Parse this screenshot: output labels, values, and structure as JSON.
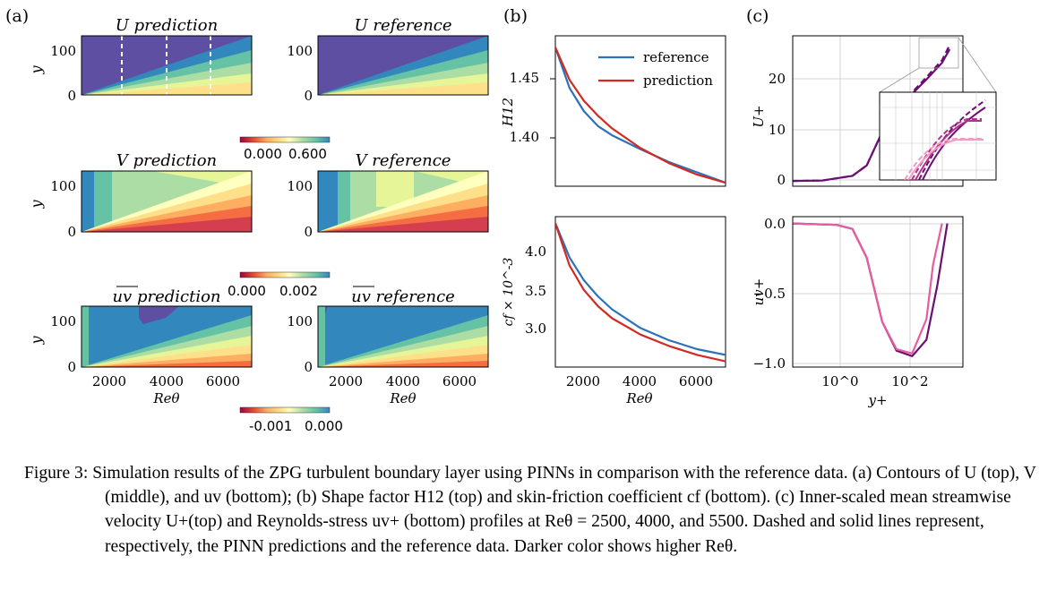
{
  "panel_labels": {
    "a": "(a)",
    "b": "(b)",
    "c": "(c)"
  },
  "panel_a": {
    "titles": {
      "u_pred": "U prediction",
      "u_ref": "U reference",
      "v_pred": "V prediction",
      "v_ref": "V reference",
      "uv_pred": "uv prediction",
      "uv_ref": "uv reference"
    },
    "ylabel": "y",
    "xlabel": "Reθ",
    "y_ticks": [
      "100",
      "0"
    ],
    "x_ticks": [
      "2000",
      "4000",
      "6000"
    ],
    "colorbars": [
      {
        "ticks": [
          "0.000",
          "0.600"
        ]
      },
      {
        "ticks": [
          "0.000",
          "0.002"
        ]
      },
      {
        "ticks": [
          "-0.001",
          "0.000"
        ]
      }
    ]
  },
  "chart_data": [
    {
      "type": "line",
      "panel": "(b) top",
      "ylabel": "H12",
      "xlim": [
        1000,
        7000
      ],
      "ylim": [
        1.36,
        1.49
      ],
      "y_ticks": [
        "1.45",
        "1.40"
      ],
      "legend_position": "top-right",
      "series": [
        {
          "name": "reference",
          "color": "#2b72b8",
          "x": [
            1000,
            1500,
            2000,
            2500,
            3000,
            4000,
            5000,
            6000,
            7000
          ],
          "y": [
            1.48,
            1.445,
            1.425,
            1.412,
            1.404,
            1.392,
            1.381,
            1.372,
            1.363
          ]
        },
        {
          "name": "prediction",
          "color": "#d02a23",
          "x": [
            1000,
            1500,
            2000,
            2500,
            3000,
            4000,
            5000,
            6000,
            7000
          ],
          "y": [
            1.48,
            1.452,
            1.434,
            1.421,
            1.41,
            1.393,
            1.38,
            1.37,
            1.363
          ]
        }
      ]
    },
    {
      "type": "line",
      "panel": "(b) bottom",
      "ylabel": "cf × 10^-3",
      "xlabel": "Reθ",
      "xlim": [
        1000,
        7000
      ],
      "ylim": [
        2.55,
        4.4
      ],
      "x_ticks": [
        "2000",
        "4000",
        "6000"
      ],
      "y_ticks": [
        "4.0",
        "3.5",
        "3.0"
      ],
      "series": [
        {
          "name": "reference",
          "color": "#2b72b8",
          "x": [
            1000,
            1500,
            2000,
            2500,
            3000,
            4000,
            5000,
            6000,
            7000
          ],
          "y": [
            4.32,
            3.9,
            3.62,
            3.42,
            3.26,
            3.03,
            2.88,
            2.77,
            2.7
          ]
        },
        {
          "name": "prediction",
          "color": "#d02a23",
          "x": [
            1000,
            1500,
            2000,
            2500,
            3000,
            4000,
            5000,
            6000,
            7000
          ],
          "y": [
            4.32,
            3.8,
            3.5,
            3.3,
            3.15,
            2.95,
            2.81,
            2.7,
            2.62
          ]
        }
      ]
    },
    {
      "type": "line",
      "panel": "(c) top",
      "ylabel": "U+",
      "x_scale": "log",
      "ylim": [
        -1,
        28
      ],
      "y_ticks": [
        "20",
        "10",
        "0"
      ],
      "grid": true,
      "series": [
        {
          "line": "solid",
          "color": "#6b0f73",
          "x": [
            0.01,
            0.1,
            1,
            3,
            10,
            30,
            100,
            300,
            1000,
            1800
          ],
          "y": [
            0.01,
            0.1,
            1,
            3,
            9.5,
            13.8,
            16.8,
            19.6,
            22.8,
            25.4
          ]
        },
        {
          "line": "dashed",
          "color": "#6b0f73",
          "x": [
            0.01,
            0.1,
            1,
            3,
            10,
            30,
            100,
            300,
            1000,
            1800
          ],
          "y": [
            0.01,
            0.1,
            1,
            3,
            9.5,
            14,
            17.1,
            20,
            23.3,
            26.2
          ]
        }
      ]
    },
    {
      "type": "line",
      "panel": "(c) bottom",
      "ylabel": "uv+",
      "xlabel": "y+",
      "x_scale": "log",
      "xlim": [
        0.01,
        5000
      ],
      "ylim": [
        -1.05,
        0.05
      ],
      "x_ticks": [
        "10^0",
        "10^2"
      ],
      "y_ticks": [
        "0.0",
        "−0.5",
        "−1.0"
      ],
      "grid": true,
      "series": [
        {
          "line": "solid",
          "color": "#6b0f73",
          "x": [
            0.01,
            0.3,
            1,
            3,
            10,
            30,
            100,
            300,
            700,
            1500
          ],
          "y": [
            0,
            -0.01,
            -0.04,
            -0.25,
            -0.72,
            -0.93,
            -0.97,
            -0.85,
            -0.45,
            0
          ]
        },
        {
          "line": "solid",
          "color": "#e55d9f",
          "x": [
            0.01,
            0.3,
            1,
            3,
            10,
            30,
            100,
            300,
            500,
            1000
          ],
          "y": [
            0,
            -0.01,
            -0.04,
            -0.25,
            -0.72,
            -0.92,
            -0.95,
            -0.7,
            -0.3,
            0
          ]
        }
      ]
    }
  ],
  "caption": {
    "label": "Figure 3:",
    "text": "Simulation results of the ZPG turbulent boundary layer using PINNs in comparison with the reference data. (a) Contours of U (top), V (middle), and uv (bottom); (b) Shape factor H12 (top) and skin-friction coefficient cf (bottom). (c) Inner-scaled mean streamwise velocity U+(top) and Reynolds-stress uv+ (bottom) profiles at Reθ = 2500, 4000, and 5500. Dashed and solid lines represent, respectively, the PINN predictions and the reference data. Darker color shows higher Reθ."
  }
}
